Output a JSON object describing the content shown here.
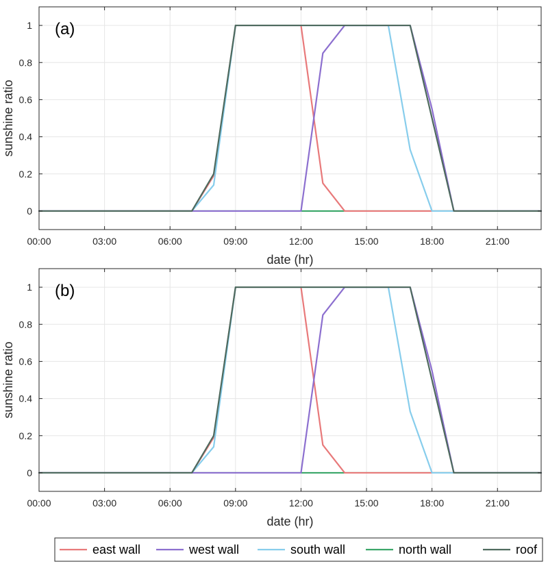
{
  "chart_data": {
    "type": "line",
    "colors": {
      "east wall": "#e8797a",
      "west wall": "#8c6fcf",
      "south wall": "#87cdec",
      "north wall": "#3aa668",
      "roof": "#4e6a5e"
    },
    "legend": {
      "placement": "bottom",
      "entries": [
        "east wall",
        "west wall",
        "south wall",
        "north wall",
        "roof"
      ]
    },
    "panels": [
      {
        "panel_label": "(a)",
        "xlabel": "date (hr)",
        "ylabel": "sunshine ratio",
        "xlim": [
          "00:00",
          "23:00"
        ],
        "ylim": [
          -0.1,
          1.1
        ],
        "grid": true,
        "xticks": [
          "00:00",
          "03:00",
          "06:00",
          "09:00",
          "12:00",
          "15:00",
          "18:00",
          "21:00"
        ],
        "yticks": [
          "0",
          "0.2",
          "0.4",
          "0.6",
          "0.8",
          "1"
        ],
        "x": [
          "00:00",
          "01:00",
          "02:00",
          "03:00",
          "04:00",
          "05:00",
          "06:00",
          "07:00",
          "08:00",
          "09:00",
          "10:00",
          "11:00",
          "12:00",
          "13:00",
          "14:00",
          "15:00",
          "16:00",
          "17:00",
          "18:00",
          "19:00",
          "20:00",
          "21:00",
          "22:00",
          "23:00"
        ],
        "series": [
          {
            "name": "east wall",
            "values": [
              0,
              0,
              0,
              0,
              0,
              0,
              0,
              0,
              0.19,
              1,
              1,
              1,
              1,
              0.15,
              0,
              0,
              0,
              0,
              0,
              0,
              0,
              0,
              0,
              0
            ]
          },
          {
            "name": "west wall",
            "values": [
              0,
              0,
              0,
              0,
              0,
              0,
              0,
              0,
              0,
              0,
              0,
              0,
              0,
              0.85,
              1,
              1,
              1,
              1,
              0.55,
              0,
              0,
              0,
              0,
              0
            ]
          },
          {
            "name": "south wall",
            "values": [
              0,
              0,
              0,
              0,
              0,
              0,
              0,
              0,
              0.14,
              1,
              1,
              1,
              1,
              1,
              1,
              1,
              1,
              0.33,
              0,
              0,
              0,
              0,
              0,
              0
            ]
          },
          {
            "name": "north wall",
            "values": [
              0,
              0,
              0,
              0,
              0,
              0,
              0,
              0,
              0,
              0,
              0,
              0,
              0,
              0,
              0,
              0,
              0,
              0,
              0,
              0,
              0,
              0,
              0,
              0
            ]
          },
          {
            "name": "roof",
            "values": [
              0,
              0,
              0,
              0,
              0,
              0,
              0,
              0,
              0.2,
              1,
              1,
              1,
              1,
              1,
              1,
              1,
              1,
              1,
              0.5,
              0,
              0,
              0,
              0,
              0
            ]
          }
        ]
      },
      {
        "panel_label": "(b)",
        "xlabel": "date (hr)",
        "ylabel": "sunshine ratio",
        "xlim": [
          "00:00",
          "23:00"
        ],
        "ylim": [
          -0.1,
          1.1
        ],
        "grid": true,
        "xticks": [
          "00:00",
          "03:00",
          "06:00",
          "09:00",
          "12:00",
          "15:00",
          "18:00",
          "21:00"
        ],
        "yticks": [
          "0",
          "0.2",
          "0.4",
          "0.6",
          "0.8",
          "1"
        ],
        "x": [
          "00:00",
          "01:00",
          "02:00",
          "03:00",
          "04:00",
          "05:00",
          "06:00",
          "07:00",
          "08:00",
          "09:00",
          "10:00",
          "11:00",
          "12:00",
          "13:00",
          "14:00",
          "15:00",
          "16:00",
          "17:00",
          "18:00",
          "19:00",
          "20:00",
          "21:00",
          "22:00",
          "23:00"
        ],
        "series": [
          {
            "name": "east wall",
            "values": [
              0,
              0,
              0,
              0,
              0,
              0,
              0,
              0,
              0.19,
              1,
              1,
              1,
              1,
              0.15,
              0,
              0,
              0,
              0,
              0,
              0,
              0,
              0,
              0,
              0
            ]
          },
          {
            "name": "west wall",
            "values": [
              0,
              0,
              0,
              0,
              0,
              0,
              0,
              0,
              0,
              0,
              0,
              0,
              0,
              0.85,
              1,
              1,
              1,
              1,
              0.55,
              0,
              0,
              0,
              0,
              0
            ]
          },
          {
            "name": "south wall",
            "values": [
              0,
              0,
              0,
              0,
              0,
              0,
              0,
              0,
              0.14,
              1,
              1,
              1,
              1,
              1,
              1,
              1,
              1,
              0.33,
              0,
              0,
              0,
              0,
              0,
              0
            ]
          },
          {
            "name": "north wall",
            "values": [
              0,
              0,
              0,
              0,
              0,
              0,
              0,
              0,
              0,
              0,
              0,
              0,
              0,
              0,
              0,
              0,
              0,
              0,
              0,
              0,
              0,
              0,
              0,
              0
            ]
          },
          {
            "name": "roof",
            "values": [
              0,
              0,
              0,
              0,
              0,
              0,
              0,
              0,
              0.2,
              1,
              1,
              1,
              1,
              1,
              1,
              1,
              1,
              1,
              0.5,
              0,
              0,
              0,
              0,
              0
            ]
          }
        ]
      }
    ]
  }
}
